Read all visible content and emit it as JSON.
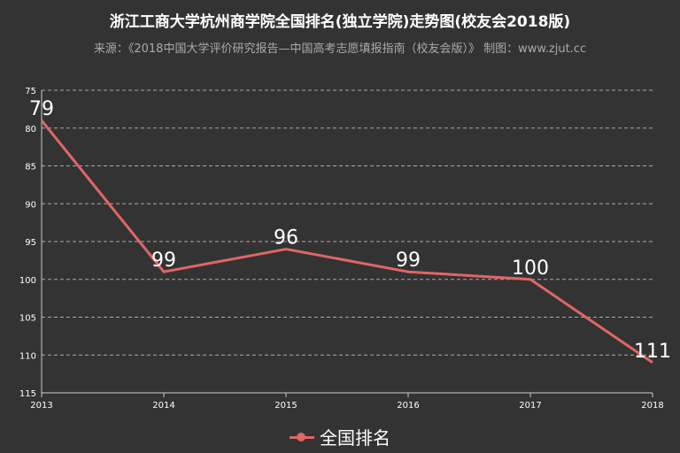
{
  "page": {
    "title": "浙江工商大学杭州商学院全国排名(独立学院)走势图(校友会2018版)",
    "subtitle": "来源：《2018中国大学评价研究报告—中国高考志愿填报指南（校友会版）》 制图：www.zjut.cc"
  },
  "chart_data": {
    "type": "line",
    "title": "浙江工商大学杭州商学院全国排名(独立学院)走势图(校友会2018版)",
    "categories": [
      "2013",
      "2014",
      "2015",
      "2016",
      "2017",
      "2018"
    ],
    "series": [
      {
        "name": "全国排名",
        "values": [
          79,
          99,
          96,
          99,
          100,
          111
        ]
      }
    ],
    "ylim": [
      75,
      115
    ],
    "y_inverted": true,
    "yticks": [
      75,
      80,
      85,
      90,
      95,
      100,
      105,
      110,
      115
    ],
    "grid": true,
    "legend": "bottom-center",
    "xlabel": "",
    "ylabel": ""
  },
  "colors": {
    "background": "#333333",
    "series": "#e06666",
    "grid": "#aaaaaa",
    "axis": "#cccccc",
    "text": "#ffffff",
    "subtitle": "#aaaaaa"
  }
}
